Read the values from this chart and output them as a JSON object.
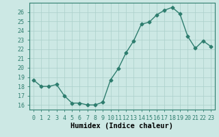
{
  "x": [
    0,
    1,
    2,
    3,
    4,
    5,
    6,
    7,
    8,
    9,
    10,
    11,
    12,
    13,
    14,
    15,
    16,
    17,
    18,
    19,
    20,
    21,
    22,
    23
  ],
  "y": [
    18.7,
    18.0,
    18.0,
    18.2,
    17.0,
    16.2,
    16.2,
    16.0,
    16.0,
    16.3,
    18.7,
    19.9,
    21.6,
    22.9,
    24.7,
    24.9,
    25.7,
    26.2,
    26.5,
    25.8,
    23.4,
    22.1,
    22.9,
    22.3
  ],
  "line_color": "#2e7d6e",
  "marker": "D",
  "marker_size": 2.5,
  "bg_color": "#cce8e4",
  "grid_color": "#aacfca",
  "xlabel": "Humidex (Indice chaleur)",
  "xlim": [
    -0.5,
    23.5
  ],
  "ylim": [
    15.5,
    27.0
  ],
  "yticks": [
    16,
    17,
    18,
    19,
    20,
    21,
    22,
    23,
    24,
    25,
    26
  ],
  "xticks": [
    0,
    1,
    2,
    3,
    4,
    5,
    6,
    7,
    8,
    9,
    10,
    11,
    12,
    13,
    14,
    15,
    16,
    17,
    18,
    19,
    20,
    21,
    22,
    23
  ],
  "tick_label_fontsize": 6.0,
  "xlabel_fontsize": 7.5,
  "line_width": 1.0,
  "spine_color": "#2e7d6e",
  "tick_color": "#2e7d6e"
}
